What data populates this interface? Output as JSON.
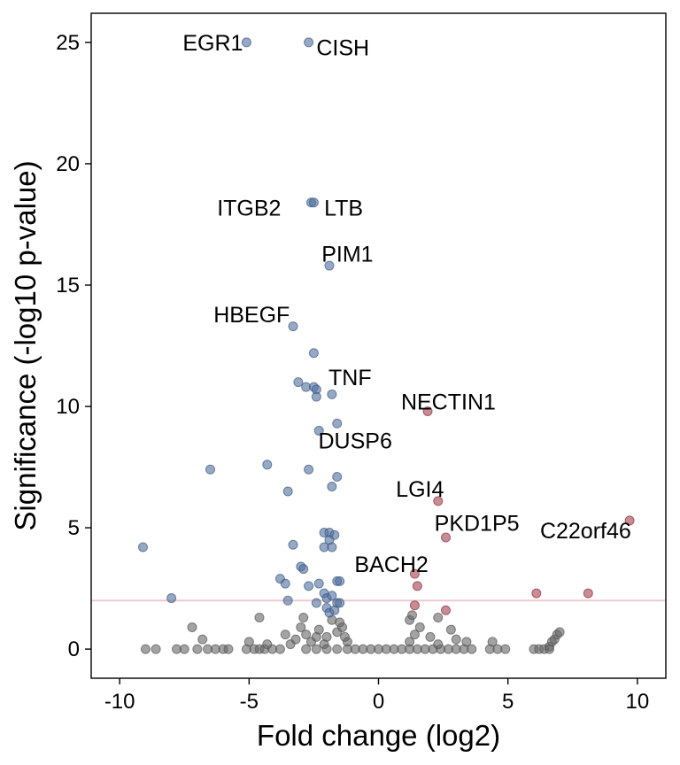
{
  "chart_data": {
    "type": "scatter",
    "title": "",
    "xlabel": "Fold change (log2)",
    "ylabel": "Significance (-log10 p-value)",
    "xlim": [
      -11.1,
      11.1
    ],
    "ylim": [
      -1.2,
      26.2
    ],
    "xticks": [
      -10,
      -5,
      0,
      5,
      10
    ],
    "yticks": [
      0,
      5,
      10,
      15,
      20,
      25
    ],
    "xtick_labels": [
      "-10",
      "-5",
      "0",
      "5",
      "10"
    ],
    "ytick_labels": [
      "0",
      "5",
      "10",
      "15",
      "20",
      "25"
    ],
    "threshold_y": 2,
    "grid": false,
    "colors": {
      "down": "#4e6f9c",
      "up": "#a3404d",
      "ns": "#666666",
      "threshold": "#f0c8cf"
    },
    "series": [
      {
        "key": "down",
        "points": [
          {
            "x": -5.1,
            "y": 25.0
          },
          {
            "x": -2.7,
            "y": 25.0
          },
          {
            "x": -2.6,
            "y": 18.4
          },
          {
            "x": -2.5,
            "y": 18.4
          },
          {
            "x": -1.9,
            "y": 15.8
          },
          {
            "x": -3.3,
            "y": 13.3
          },
          {
            "x": -2.5,
            "y": 12.2
          },
          {
            "x": -3.1,
            "y": 11.0
          },
          {
            "x": -2.8,
            "y": 10.8
          },
          {
            "x": -2.5,
            "y": 10.8
          },
          {
            "x": -2.4,
            "y": 10.7
          },
          {
            "x": -1.8,
            "y": 10.5
          },
          {
            "x": -2.4,
            "y": 10.4
          },
          {
            "x": -1.6,
            "y": 9.3
          },
          {
            "x": -2.3,
            "y": 9.0
          },
          {
            "x": -4.3,
            "y": 7.6
          },
          {
            "x": -6.5,
            "y": 7.4
          },
          {
            "x": -2.7,
            "y": 7.4
          },
          {
            "x": -1.6,
            "y": 7.1
          },
          {
            "x": -1.8,
            "y": 6.7
          },
          {
            "x": -3.5,
            "y": 6.5
          },
          {
            "x": -2.1,
            "y": 4.8
          },
          {
            "x": -1.9,
            "y": 4.8
          },
          {
            "x": -1.7,
            "y": 4.7
          },
          {
            "x": -3.3,
            "y": 4.3
          },
          {
            "x": -2.1,
            "y": 4.2
          },
          {
            "x": -1.8,
            "y": 4.2
          },
          {
            "x": -9.1,
            "y": 4.2
          },
          {
            "x": -1.9,
            "y": 4.5
          },
          {
            "x": -3.0,
            "y": 3.4
          },
          {
            "x": -2.9,
            "y": 3.3
          },
          {
            "x": -3.8,
            "y": 2.9
          },
          {
            "x": -3.6,
            "y": 2.7
          },
          {
            "x": -2.3,
            "y": 2.7
          },
          {
            "x": -2.7,
            "y": 2.6
          },
          {
            "x": -1.6,
            "y": 2.8
          },
          {
            "x": -1.5,
            "y": 2.8
          },
          {
            "x": -2.1,
            "y": 2.3
          },
          {
            "x": -2.0,
            "y": 2.1
          },
          {
            "x": -1.8,
            "y": 2.2
          },
          {
            "x": -8.0,
            "y": 2.1
          },
          {
            "x": -3.5,
            "y": 2.0
          },
          {
            "x": -2.4,
            "y": 1.9
          },
          {
            "x": -2.0,
            "y": 1.7
          },
          {
            "x": -1.6,
            "y": 1.9
          },
          {
            "x": -1.5,
            "y": 1.9
          },
          {
            "x": -1.9,
            "y": 1.5
          },
          {
            "x": -1.7,
            "y": 1.6
          }
        ]
      },
      {
        "key": "up",
        "points": [
          {
            "x": 1.9,
            "y": 9.8
          },
          {
            "x": 2.3,
            "y": 6.1
          },
          {
            "x": 2.6,
            "y": 4.6
          },
          {
            "x": 9.7,
            "y": 5.3
          },
          {
            "x": 1.4,
            "y": 3.1
          },
          {
            "x": 1.5,
            "y": 2.6
          },
          {
            "x": 6.1,
            "y": 2.3
          },
          {
            "x": 8.1,
            "y": 2.3
          },
          {
            "x": 1.4,
            "y": 1.8
          },
          {
            "x": 2.6,
            "y": 1.6
          }
        ]
      },
      {
        "key": "ns",
        "points": [
          {
            "x": -9.0,
            "y": 0.0
          },
          {
            "x": -8.6,
            "y": 0.0
          },
          {
            "x": -7.8,
            "y": 0.0
          },
          {
            "x": -7.5,
            "y": 0.0
          },
          {
            "x": -7.2,
            "y": 0.9
          },
          {
            "x": -7.0,
            "y": 0.0
          },
          {
            "x": -6.8,
            "y": 0.4
          },
          {
            "x": -6.6,
            "y": 0.0
          },
          {
            "x": -6.3,
            "y": 0.0
          },
          {
            "x": -6.0,
            "y": 0.0
          },
          {
            "x": -5.8,
            "y": 0.0
          },
          {
            "x": -5.1,
            "y": 0.0
          },
          {
            "x": -4.8,
            "y": 0.0
          },
          {
            "x": -4.6,
            "y": 0.0
          },
          {
            "x": -4.4,
            "y": 0.0
          },
          {
            "x": -4.1,
            "y": 0.0
          },
          {
            "x": -4.6,
            "y": 1.3
          },
          {
            "x": -5.0,
            "y": 0.3
          },
          {
            "x": -4.3,
            "y": 0.2
          },
          {
            "x": -3.8,
            "y": 0.0
          },
          {
            "x": -3.6,
            "y": 0.6
          },
          {
            "x": -3.4,
            "y": 0.2
          },
          {
            "x": -3.2,
            "y": 0.4
          },
          {
            "x": -3.0,
            "y": 0.9
          },
          {
            "x": -2.9,
            "y": 1.3
          },
          {
            "x": -2.8,
            "y": 0.6
          },
          {
            "x": -2.6,
            "y": 0.3
          },
          {
            "x": -2.4,
            "y": 0.5
          },
          {
            "x": -2.3,
            "y": 0.8
          },
          {
            "x": -2.1,
            "y": 0.2
          },
          {
            "x": -2.0,
            "y": 0.5
          },
          {
            "x": -1.8,
            "y": 1.2
          },
          {
            "x": -1.6,
            "y": 0.7
          },
          {
            "x": -1.4,
            "y": 0.9
          },
          {
            "x": -1.5,
            "y": 1.1
          },
          {
            "x": -1.2,
            "y": 0.3
          },
          {
            "x": -1.3,
            "y": 0.5
          },
          {
            "x": -2.8,
            "y": 0.0
          },
          {
            "x": -2.4,
            "y": 0.0
          },
          {
            "x": -2.0,
            "y": 0.0
          },
          {
            "x": -1.6,
            "y": 0.0
          },
          {
            "x": -1.2,
            "y": 0.0
          },
          {
            "x": -0.9,
            "y": 0.0
          },
          {
            "x": -0.6,
            "y": 0.0
          },
          {
            "x": -0.3,
            "y": 0.0
          },
          {
            "x": 0.0,
            "y": 0.0
          },
          {
            "x": 0.3,
            "y": 0.0
          },
          {
            "x": 0.6,
            "y": 0.0
          },
          {
            "x": 0.9,
            "y": 0.0
          },
          {
            "x": 1.2,
            "y": 0.0
          },
          {
            "x": 1.5,
            "y": 0.0
          },
          {
            "x": 1.8,
            "y": 0.0
          },
          {
            "x": 2.1,
            "y": 0.0
          },
          {
            "x": 2.4,
            "y": 0.0
          },
          {
            "x": 2.7,
            "y": 0.0
          },
          {
            "x": 3.0,
            "y": 0.0
          },
          {
            "x": 3.3,
            "y": 0.0
          },
          {
            "x": 3.6,
            "y": 0.0
          },
          {
            "x": 1.2,
            "y": 0.3
          },
          {
            "x": 1.4,
            "y": 0.6
          },
          {
            "x": 1.6,
            "y": 0.9
          },
          {
            "x": 1.2,
            "y": 1.2
          },
          {
            "x": 1.3,
            "y": 1.4
          },
          {
            "x": 2.3,
            "y": 1.3
          },
          {
            "x": 2.0,
            "y": 0.5
          },
          {
            "x": 2.3,
            "y": 0.2
          },
          {
            "x": 2.8,
            "y": 0.8
          },
          {
            "x": 3.0,
            "y": 0.4
          },
          {
            "x": 3.4,
            "y": 0.3
          },
          {
            "x": 4.3,
            "y": 0.0
          },
          {
            "x": 4.6,
            "y": 0.0
          },
          {
            "x": 4.4,
            "y": 0.3
          },
          {
            "x": 4.9,
            "y": 0.0
          },
          {
            "x": 6.0,
            "y": 0.0
          },
          {
            "x": 6.2,
            "y": 0.0
          },
          {
            "x": 6.4,
            "y": 0.0
          },
          {
            "x": 6.6,
            "y": 0.1
          },
          {
            "x": 6.7,
            "y": 0.3
          },
          {
            "x": 6.8,
            "y": 0.4
          },
          {
            "x": 6.9,
            "y": 0.6
          },
          {
            "x": 7.0,
            "y": 0.7
          },
          {
            "x": 6.6,
            "y": 0.0
          }
        ]
      }
    ],
    "annotations": [
      {
        "text": "EGR1",
        "x": -6.4,
        "y": 25.0,
        "anchor": "middle"
      },
      {
        "text": "CISH",
        "x": -2.4,
        "y": 24.8,
        "anchor": "start"
      },
      {
        "text": "ITGB2",
        "x": -5.0,
        "y": 18.2,
        "anchor": "middle"
      },
      {
        "text": "LTB",
        "x": -2.1,
        "y": 18.2,
        "anchor": "start"
      },
      {
        "text": "PIM1",
        "x": -1.2,
        "y": 16.3,
        "anchor": "middle"
      },
      {
        "text": "HBEGF",
        "x": -4.9,
        "y": 13.8,
        "anchor": "middle"
      },
      {
        "text": "TNF",
        "x": -1.1,
        "y": 11.2,
        "anchor": "middle"
      },
      {
        "text": "NECTIN1",
        "x": 2.7,
        "y": 10.2,
        "anchor": "middle"
      },
      {
        "text": "DUSP6",
        "x": -0.9,
        "y": 8.6,
        "anchor": "middle"
      },
      {
        "text": "LGI4",
        "x": 1.6,
        "y": 6.6,
        "anchor": "middle"
      },
      {
        "text": "PKD1P5",
        "x": 3.8,
        "y": 5.2,
        "anchor": "middle"
      },
      {
        "text": "C22orf46",
        "x": 8.0,
        "y": 4.9,
        "anchor": "middle"
      },
      {
        "text": "BACH2",
        "x": 0.5,
        "y": 3.5,
        "anchor": "middle"
      }
    ]
  }
}
